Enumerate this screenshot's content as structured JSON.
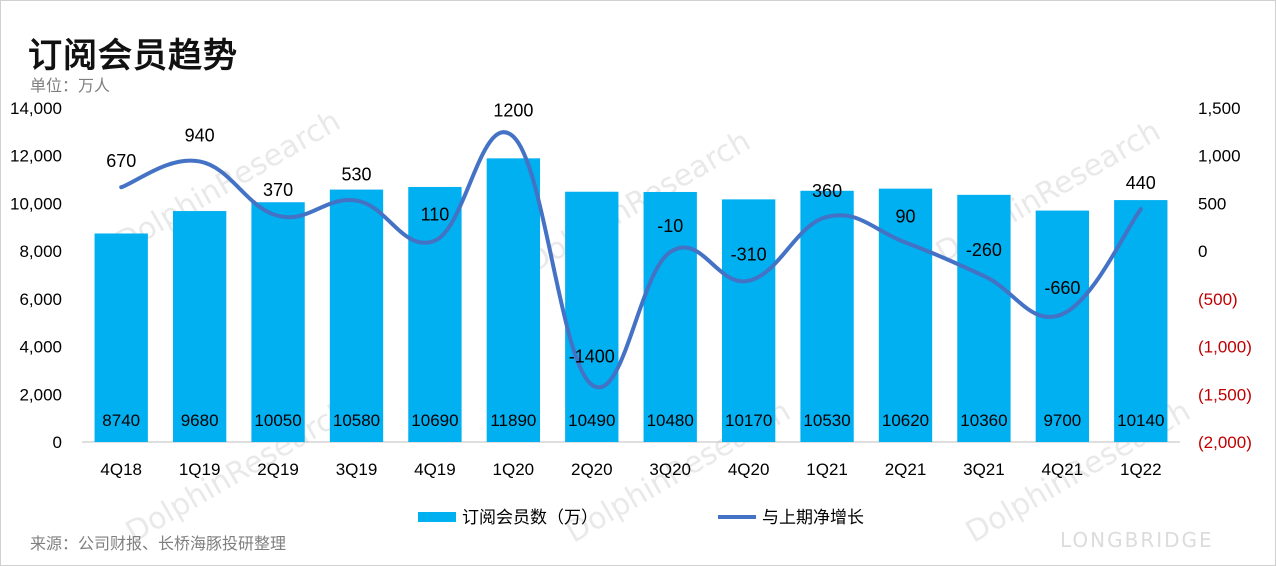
{
  "header": {
    "title": "订阅会员趋势",
    "unit": "单位：万人"
  },
  "footer": {
    "source": "来源：公司财报、长桥海豚投研整理"
  },
  "watermark": {
    "text": "DolphinResearch",
    "brand": "LONGBRIDGE"
  },
  "chart_data": {
    "type": "bar",
    "title": "订阅会员趋势",
    "categories": [
      "4Q18",
      "1Q19",
      "2Q19",
      "3Q19",
      "4Q19",
      "1Q20",
      "2Q20",
      "3Q20",
      "4Q20",
      "1Q21",
      "2Q21",
      "3Q21",
      "4Q21",
      "1Q22"
    ],
    "series": [
      {
        "name": "订阅会员数（万）",
        "type": "bar",
        "axis": "left",
        "color": "#00b0f0",
        "values": [
          8740,
          9680,
          10050,
          10580,
          10690,
          11890,
          10490,
          10480,
          10170,
          10530,
          10620,
          10360,
          9700,
          10140
        ]
      },
      {
        "name": "与上期净增长",
        "type": "line",
        "axis": "right",
        "smooth": true,
        "color": "#4472c4",
        "values": [
          670,
          940,
          370,
          530,
          110,
          1200,
          -1400,
          -10,
          -310,
          360,
          90,
          -260,
          -660,
          440
        ]
      }
    ],
    "y_left": {
      "range": [
        0,
        14000
      ],
      "ticks": [
        "0",
        "2,000",
        "4,000",
        "6,000",
        "8,000",
        "10,000",
        "12,000",
        "14,000"
      ]
    },
    "y_right": {
      "range": [
        -2000,
        1500
      ],
      "ticks": [
        "(2,000)",
        "(1,500)",
        "(1,000)",
        "(500)",
        "0",
        "500",
        "1,000",
        "1,500"
      ],
      "negative_color": "#c00000"
    },
    "legend": "bottom",
    "grid": false
  }
}
